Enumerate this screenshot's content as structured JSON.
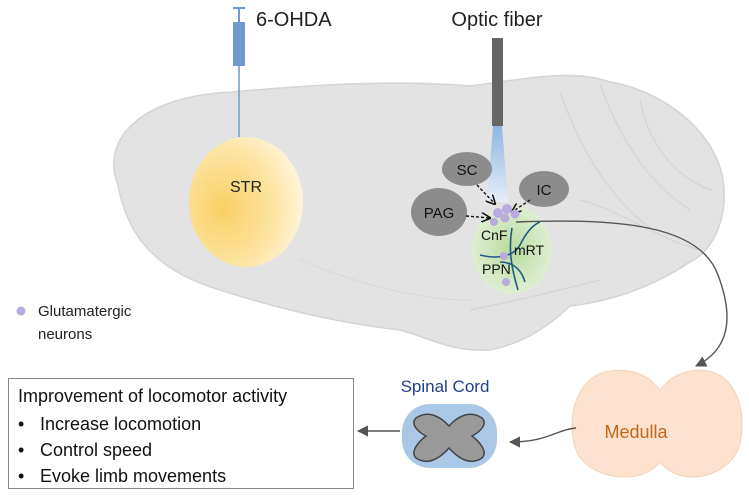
{
  "procedure": {
    "injection_label": "6-OHDA",
    "fiber_label": "Optic fiber"
  },
  "regions": {
    "str": "STR",
    "sc": "SC",
    "ic": "IC",
    "pag": "PAG",
    "cnf": "CnF",
    "mrt": "mRT",
    "ppn": "PPN"
  },
  "legend": {
    "glutamatergic_line1": "Glutamatergic",
    "glutamatergic_line2": "neurons"
  },
  "pathway": {
    "spinal_cord": "Spinal Cord",
    "medulla": "Medulla"
  },
  "outcome": {
    "title": "Improvement of locomotor activity",
    "items": [
      "Increase locomotion",
      "Control speed",
      "Evoke limb movements"
    ]
  },
  "colors": {
    "brain": "#e3e3e3",
    "brain_outline": "#d2d2d2",
    "str_fill": "#fbd77a",
    "region_gray": "#8c8c8c",
    "cnf_green": "#c7e2b0",
    "neuron_purple": "#b9abe0",
    "nerve_blue": "#1f5a86",
    "light_blue": "#aac8e6",
    "spinal_label": "#1f3f8f",
    "medulla_fill": "#fde3cf",
    "medulla_text": "#c2651b",
    "injector": "#6f99cf"
  }
}
